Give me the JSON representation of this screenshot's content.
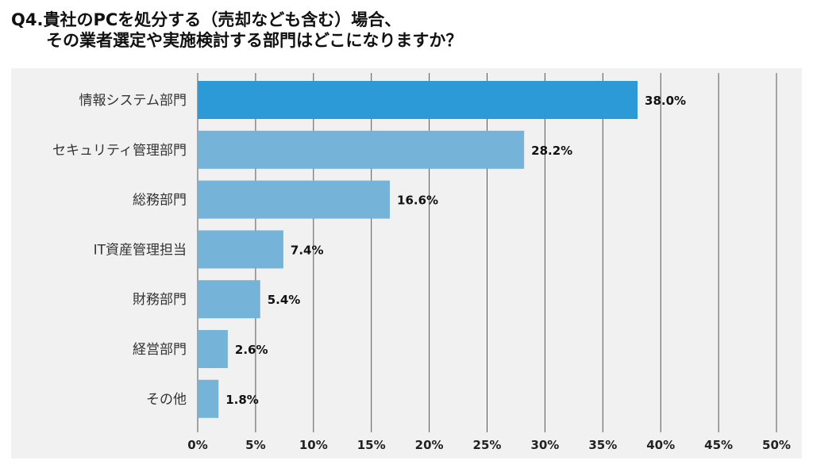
{
  "title": {
    "line1": "Q4.貴社のPCを処分する（売却なども含む）場合、",
    "line2": "その業者選定や実施検討する部門はどこになりますか？"
  },
  "colors": {
    "highlight": "#2b9ad6",
    "bar": "#76b3d8",
    "panel": "#f1f1f1",
    "grid": "#555555"
  },
  "chart_data": {
    "type": "bar",
    "orientation": "horizontal",
    "categories": [
      "情報システム部門",
      "セキュリティ管理部門",
      "総務部門",
      "IT資産管理担当",
      "財務部門",
      "経営部門",
      "その他"
    ],
    "values": [
      38.0,
      28.2,
      16.6,
      7.4,
      5.4,
      2.6,
      1.8
    ],
    "value_labels": [
      "38.0%",
      "28.2%",
      "16.6%",
      "7.4%",
      "5.4%",
      "2.6%",
      "1.8%"
    ],
    "xlim": [
      0,
      50
    ],
    "xticks": [
      0,
      5,
      10,
      15,
      20,
      25,
      30,
      35,
      40,
      45,
      50
    ],
    "xtick_labels": [
      "0%",
      "5%",
      "10%",
      "15%",
      "20%",
      "25%",
      "30%",
      "35%",
      "40%",
      "45%",
      "50%"
    ],
    "grid": true,
    "highlight_index": 0
  }
}
